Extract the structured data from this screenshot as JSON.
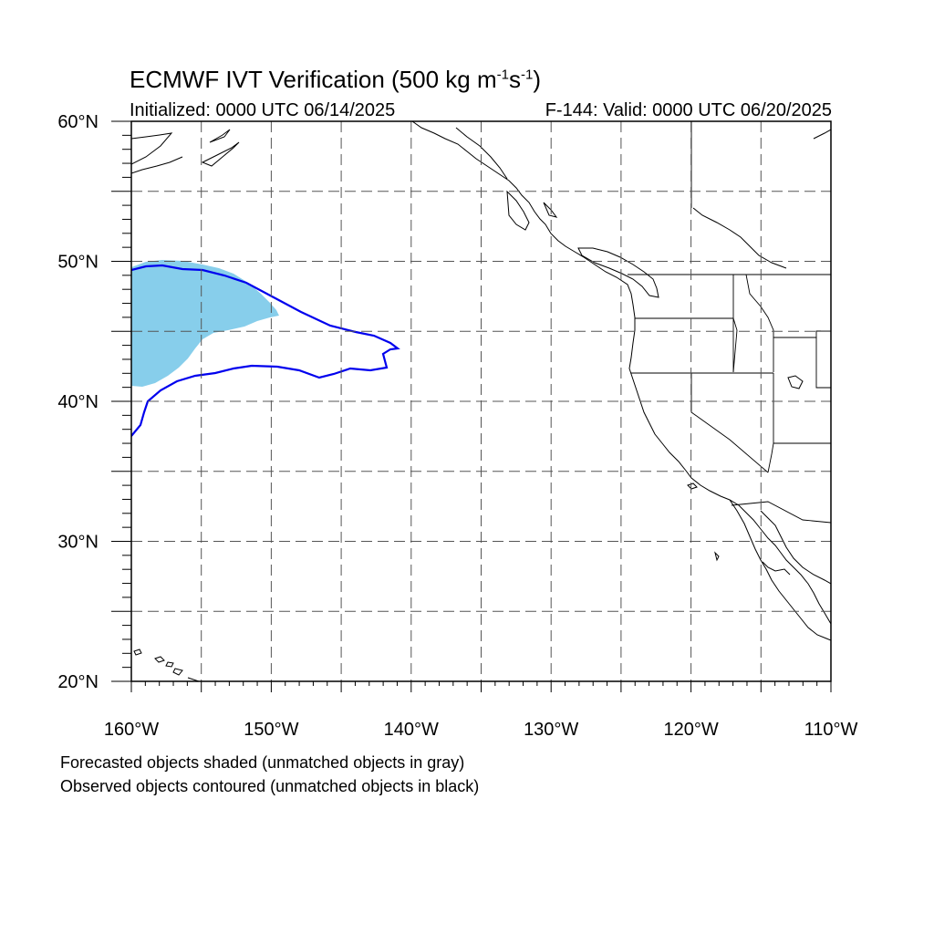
{
  "header": {
    "title_main": "ECMWF IVT Verification (500 kg m",
    "title_exp1": "-1",
    "title_mid": "s",
    "title_exp2": "-1",
    "title_end": ")",
    "initialized": "Initialized: 0000 UTC 06/14/2025",
    "valid": "F-144: Valid: 0000 UTC 06/20/2025"
  },
  "map": {
    "lon_range": [
      -160,
      -110
    ],
    "lat_range": [
      20,
      60
    ],
    "lon_tick_labels": [
      "160°W",
      "150°W",
      "140°W",
      "130°W",
      "120°W",
      "110°W"
    ],
    "lat_tick_labels": [
      "20°N",
      "30°N",
      "40°N",
      "50°N",
      "60°N"
    ],
    "gridlines": "dashed every 5°",
    "colors": {
      "forecast_object": "#87ceeb",
      "observed_contour": "#0000ee",
      "coastline": "#000000",
      "grid": "#555555"
    }
  },
  "legend": {
    "line1": "Forecasted objects shaded (unmatched objects in gray)",
    "line2": "Observed objects contoured (unmatched objects in black)"
  }
}
